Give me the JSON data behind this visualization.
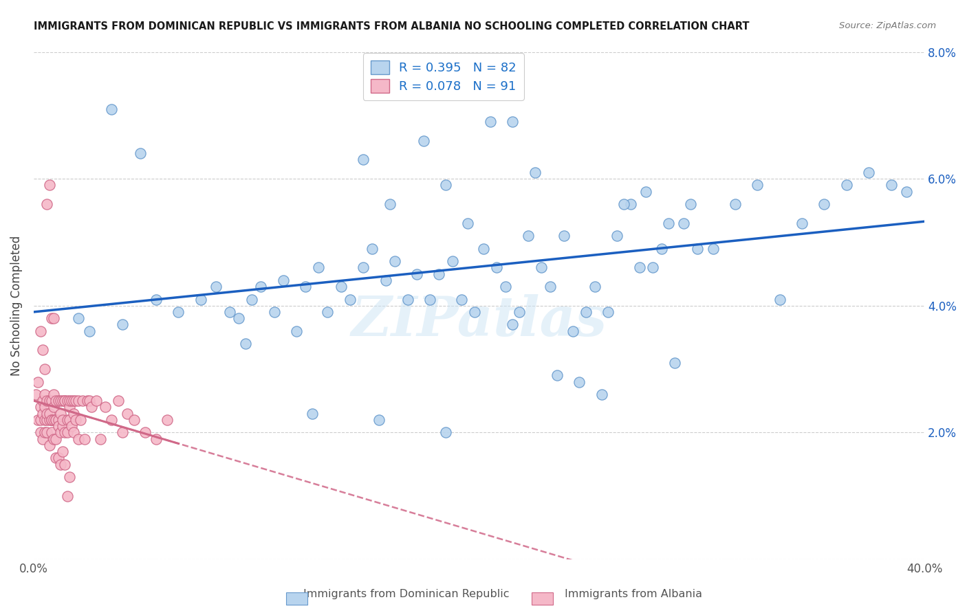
{
  "title": "IMMIGRANTS FROM DOMINICAN REPUBLIC VS IMMIGRANTS FROM ALBANIA NO SCHOOLING COMPLETED CORRELATION CHART",
  "source": "Source: ZipAtlas.com",
  "ylabel": "No Schooling Completed",
  "xlim": [
    0.0,
    0.4
  ],
  "ylim": [
    0.0,
    0.08
  ],
  "xtick_pos": [
    0.0,
    0.05,
    0.1,
    0.15,
    0.2,
    0.25,
    0.3,
    0.35,
    0.4
  ],
  "xtick_labels": [
    "0.0%",
    "",
    "",
    "",
    "",
    "",
    "",
    "",
    "40.0%"
  ],
  "ytick_pos": [
    0.0,
    0.02,
    0.04,
    0.06,
    0.08
  ],
  "ytick_labels_right": [
    "",
    "2.0%",
    "4.0%",
    "6.0%",
    "8.0%"
  ],
  "r1": 0.395,
  "n1": 82,
  "r2": 0.078,
  "n2": 91,
  "blue_face": "#B8D4EE",
  "blue_edge": "#6699CC",
  "pink_face": "#F5B8C8",
  "pink_edge": "#D06888",
  "blue_line": "#1B5FC0",
  "pink_line": "#D06888",
  "legend_color": "#1B6FC8",
  "watermark": "ZIPatlas",
  "blue_x": [
    0.02,
    0.025,
    0.04,
    0.055,
    0.065,
    0.075,
    0.082,
    0.088,
    0.092,
    0.098,
    0.102,
    0.108,
    0.112,
    0.118,
    0.122,
    0.128,
    0.132,
    0.138,
    0.142,
    0.148,
    0.152,
    0.158,
    0.162,
    0.168,
    0.172,
    0.178,
    0.182,
    0.188,
    0.192,
    0.198,
    0.202,
    0.208,
    0.212,
    0.218,
    0.222,
    0.228,
    0.232,
    0.238,
    0.242,
    0.248,
    0.252,
    0.258,
    0.262,
    0.268,
    0.272,
    0.278,
    0.282,
    0.288,
    0.292,
    0.298,
    0.148,
    0.16,
    0.175,
    0.185,
    0.195,
    0.205,
    0.215,
    0.225,
    0.235,
    0.245,
    0.255,
    0.265,
    0.275,
    0.285,
    0.295,
    0.305,
    0.315,
    0.325,
    0.335,
    0.345,
    0.355,
    0.365,
    0.375,
    0.385,
    0.392,
    0.035,
    0.048,
    0.095,
    0.125,
    0.155,
    0.185,
    0.215
  ],
  "blue_y": [
    0.038,
    0.036,
    0.037,
    0.041,
    0.039,
    0.041,
    0.043,
    0.039,
    0.038,
    0.041,
    0.043,
    0.039,
    0.044,
    0.036,
    0.043,
    0.046,
    0.039,
    0.043,
    0.041,
    0.046,
    0.049,
    0.044,
    0.047,
    0.041,
    0.045,
    0.041,
    0.045,
    0.047,
    0.041,
    0.039,
    0.049,
    0.046,
    0.043,
    0.039,
    0.051,
    0.046,
    0.043,
    0.051,
    0.036,
    0.039,
    0.043,
    0.039,
    0.051,
    0.056,
    0.046,
    0.046,
    0.049,
    0.031,
    0.053,
    0.049,
    0.063,
    0.056,
    0.066,
    0.059,
    0.053,
    0.069,
    0.069,
    0.061,
    0.029,
    0.028,
    0.026,
    0.056,
    0.058,
    0.053,
    0.056,
    0.049,
    0.056,
    0.059,
    0.041,
    0.053,
    0.056,
    0.059,
    0.061,
    0.059,
    0.058,
    0.071,
    0.064,
    0.034,
    0.023,
    0.022,
    0.02,
    0.037
  ],
  "pink_x": [
    0.001,
    0.002,
    0.002,
    0.003,
    0.003,
    0.003,
    0.004,
    0.004,
    0.004,
    0.005,
    0.005,
    0.005,
    0.005,
    0.006,
    0.006,
    0.006,
    0.006,
    0.007,
    0.007,
    0.007,
    0.007,
    0.008,
    0.008,
    0.008,
    0.008,
    0.009,
    0.009,
    0.009,
    0.009,
    0.01,
    0.01,
    0.01,
    0.01,
    0.011,
    0.011,
    0.011,
    0.012,
    0.012,
    0.012,
    0.013,
    0.013,
    0.013,
    0.014,
    0.014,
    0.014,
    0.015,
    0.015,
    0.015,
    0.016,
    0.016,
    0.016,
    0.017,
    0.017,
    0.018,
    0.018,
    0.018,
    0.019,
    0.019,
    0.02,
    0.02,
    0.021,
    0.022,
    0.023,
    0.024,
    0.025,
    0.026,
    0.028,
    0.03,
    0.032,
    0.035,
    0.038,
    0.04,
    0.042,
    0.045,
    0.05,
    0.055,
    0.06,
    0.003,
    0.004,
    0.005,
    0.006,
    0.007,
    0.008,
    0.009,
    0.01,
    0.011,
    0.012,
    0.013,
    0.014,
    0.015,
    0.016
  ],
  "pink_y": [
    0.026,
    0.028,
    0.022,
    0.024,
    0.02,
    0.022,
    0.023,
    0.025,
    0.019,
    0.022,
    0.02,
    0.024,
    0.026,
    0.022,
    0.02,
    0.025,
    0.023,
    0.022,
    0.018,
    0.025,
    0.023,
    0.022,
    0.02,
    0.025,
    0.022,
    0.022,
    0.019,
    0.024,
    0.026,
    0.022,
    0.019,
    0.025,
    0.022,
    0.022,
    0.025,
    0.021,
    0.02,
    0.023,
    0.025,
    0.021,
    0.025,
    0.022,
    0.025,
    0.02,
    0.025,
    0.022,
    0.025,
    0.02,
    0.024,
    0.022,
    0.025,
    0.021,
    0.025,
    0.02,
    0.023,
    0.025,
    0.022,
    0.025,
    0.019,
    0.025,
    0.022,
    0.025,
    0.019,
    0.025,
    0.025,
    0.024,
    0.025,
    0.019,
    0.024,
    0.022,
    0.025,
    0.02,
    0.023,
    0.022,
    0.02,
    0.019,
    0.022,
    0.036,
    0.033,
    0.03,
    0.056,
    0.059,
    0.038,
    0.038,
    0.016,
    0.016,
    0.015,
    0.017,
    0.015,
    0.01,
    0.013
  ]
}
